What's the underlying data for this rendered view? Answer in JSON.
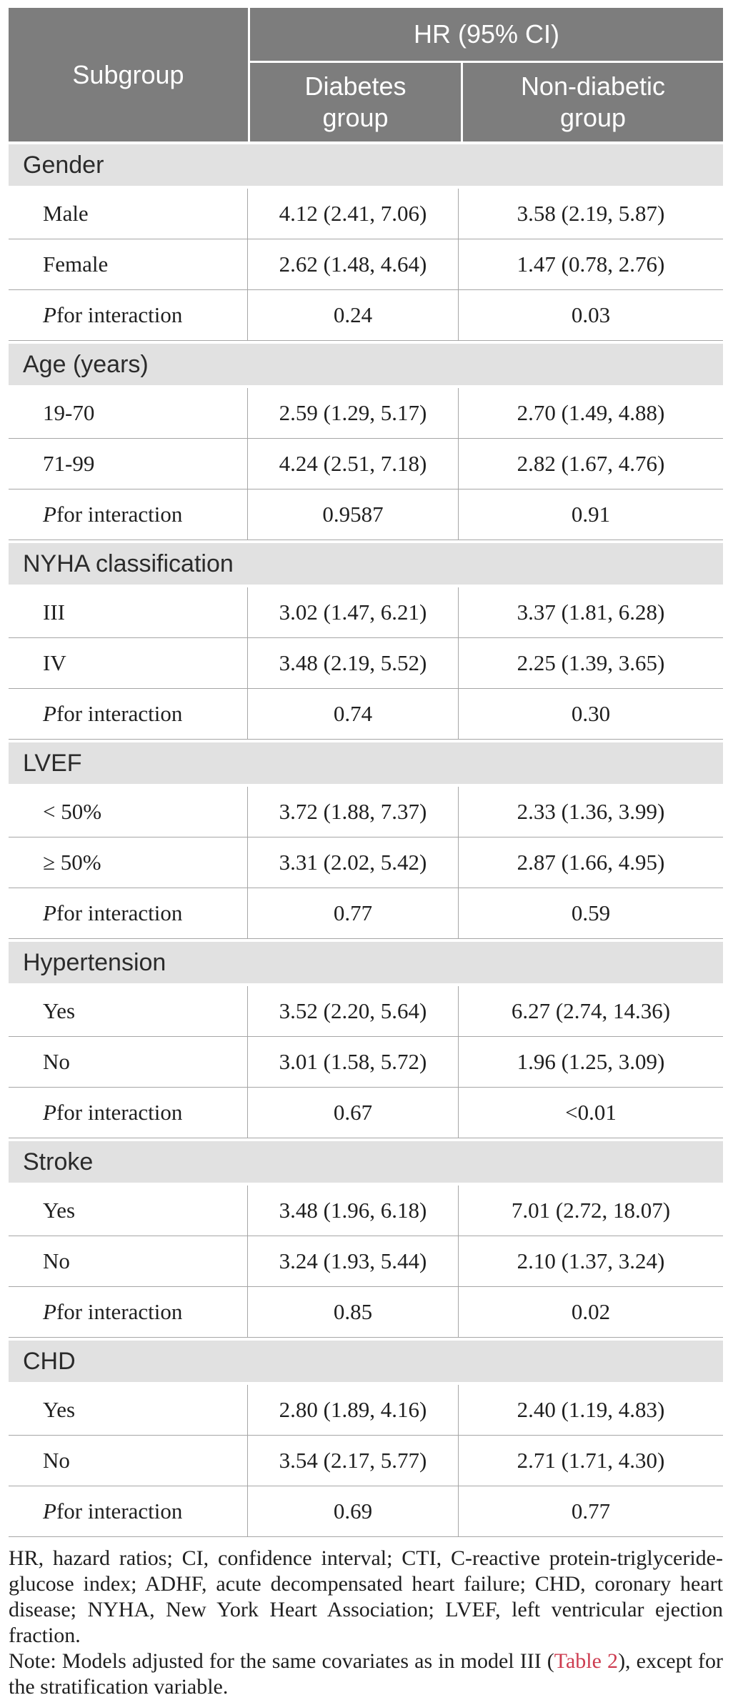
{
  "table": {
    "header": {
      "subgroup_label": "Subgroup",
      "hr_ci_label": "HR (95% CI)",
      "diabetes_label": "Diabetes group",
      "non_diabetic_label": "Non-diabetic group"
    },
    "sections": [
      {
        "title": "Gender",
        "rows": [
          {
            "subgroup": "Male",
            "diabetes": "4.12 (2.41, 7.06)",
            "non_diabetic": "3.58 (2.19, 5.87)"
          },
          {
            "subgroup": "Female",
            "diabetes": "2.62 (1.48, 4.64)",
            "non_diabetic": "1.47 (0.78, 2.76)"
          },
          {
            "subgroup": "P for interaction",
            "italic_first_letter": true,
            "diabetes": "0.24",
            "non_diabetic": "0.03"
          }
        ]
      },
      {
        "title": "Age (years)",
        "rows": [
          {
            "subgroup": "19-70",
            "diabetes": "2.59 (1.29, 5.17)",
            "non_diabetic": "2.70 (1.49, 4.88)"
          },
          {
            "subgroup": "71-99",
            "diabetes": "4.24 (2.51, 7.18)",
            "non_diabetic": "2.82 (1.67, 4.76)"
          },
          {
            "subgroup": "P for interaction",
            "italic_first_letter": true,
            "diabetes": "0.9587",
            "non_diabetic": "0.91"
          }
        ]
      },
      {
        "title": "NYHA classification",
        "rows": [
          {
            "subgroup": "III",
            "diabetes": "3.02 (1.47, 6.21)",
            "non_diabetic": "3.37 (1.81, 6.28)"
          },
          {
            "subgroup": "IV",
            "diabetes": "3.48 (2.19, 5.52)",
            "non_diabetic": "2.25 (1.39, 3.65)"
          },
          {
            "subgroup": "P for interaction",
            "italic_first_letter": true,
            "diabetes": "0.74",
            "non_diabetic": "0.30"
          }
        ]
      },
      {
        "title": "LVEF",
        "rows": [
          {
            "subgroup": "< 50%",
            "diabetes": "3.72 (1.88, 7.37)",
            "non_diabetic": "2.33 (1.36, 3.99)"
          },
          {
            "subgroup": "≥ 50%",
            "diabetes": "3.31 (2.02, 5.42)",
            "non_diabetic": "2.87 (1.66, 4.95)"
          },
          {
            "subgroup": "P for interaction",
            "italic_first_letter": true,
            "diabetes": "0.77",
            "non_diabetic": "0.59"
          }
        ]
      },
      {
        "title": "Hypertension",
        "rows": [
          {
            "subgroup": "Yes",
            "diabetes": "3.52 (2.20, 5.64)",
            "non_diabetic": "6.27 (2.74, 14.36)"
          },
          {
            "subgroup": "No",
            "diabetes": "3.01 (1.58, 5.72)",
            "non_diabetic": "1.96 (1.25, 3.09)"
          },
          {
            "subgroup": "P for interaction",
            "italic_first_letter": true,
            "diabetes": "0.67",
            "non_diabetic": "<0.01"
          }
        ]
      },
      {
        "title": "Stroke",
        "rows": [
          {
            "subgroup": "Yes",
            "diabetes": "3.48 (1.96, 6.18)",
            "non_diabetic": "7.01 (2.72, 18.07)"
          },
          {
            "subgroup": "No",
            "diabetes": "3.24 (1.93, 5.44)",
            "non_diabetic": "2.10 (1.37, 3.24)"
          },
          {
            "subgroup": "P for interaction",
            "italic_first_letter": true,
            "diabetes": "0.85",
            "non_diabetic": "0.02"
          }
        ]
      },
      {
        "title": "CHD",
        "rows": [
          {
            "subgroup": "Yes",
            "diabetes": "2.80 (1.89, 4.16)",
            "non_diabetic": "2.40 (1.19, 4.83)"
          },
          {
            "subgroup": "No",
            "diabetes": "3.54 (2.17, 5.77)",
            "non_diabetic": "2.71 (1.71, 4.30)"
          },
          {
            "subgroup": "P for interaction",
            "italic_first_letter": true,
            "diabetes": "0.69",
            "non_diabetic": "0.77"
          }
        ]
      }
    ]
  },
  "footnote": {
    "abbreviations": "HR, hazard ratios; CI, confidence interval; CTI, C-reactive protein-triglyceride-glucose index; ADHF, acute decompensated heart failure; CHD, coronary heart disease; NYHA, New York Heart Association; LVEF, left ventricular ejection fraction.",
    "note_prefix": "Note: Models adjusted for the same covariates as in model III (",
    "note_link": "Table 2",
    "note_suffix": "), except for the stratification variable."
  },
  "colors": {
    "header_bg": "#7d7d7d",
    "header_text": "#ffffff",
    "band_bg": "#e1e1e1",
    "band_text": "#2b2b2b",
    "row_border": "#a6a6a6",
    "body_text": "#1f1f1f",
    "link_red": "#cd3c50",
    "page_bg": "#ffffff"
  }
}
